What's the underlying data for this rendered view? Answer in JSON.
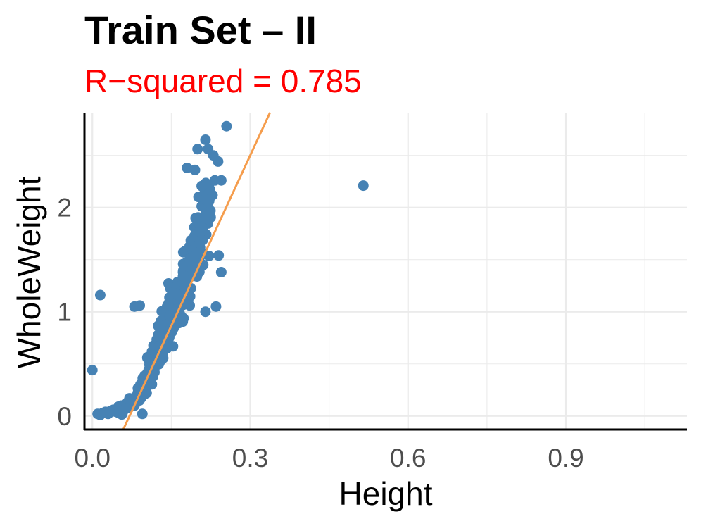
{
  "header": {
    "title": "Train Set – II",
    "subtitle": "R−squared = 0.785"
  },
  "chart_data": {
    "type": "scatter",
    "xlabel": "Height",
    "ylabel": "WholeWeight",
    "xlim": [
      -0.015,
      1.13
    ],
    "ylim": [
      -0.13,
      2.91
    ],
    "x_ticks": [
      0.0,
      0.3,
      0.6,
      0.9
    ],
    "x_tick_labels": [
      "0.0",
      "0.3",
      "0.6",
      "0.9"
    ],
    "y_ticks": [
      0,
      1,
      2
    ],
    "y_tick_labels": [
      "0",
      "1",
      "2"
    ],
    "grid": true,
    "point_color": "#4682b4",
    "fit_line_color": "#f59d4d",
    "fit_line": {
      "slope": 10.9,
      "intercept": -0.77
    },
    "points": [
      [
        0.0,
        0.44
      ],
      [
        0.015,
        1.16
      ],
      [
        0.515,
        2.21
      ],
      [
        0.08,
        1.05
      ],
      [
        0.09,
        1.06
      ],
      [
        0.255,
        2.78
      ],
      [
        0.215,
        2.65
      ],
      [
        0.2,
        2.56
      ],
      [
        0.22,
        2.56
      ],
      [
        0.23,
        2.5
      ],
      [
        0.18,
        2.38
      ],
      [
        0.195,
        2.36
      ],
      [
        0.245,
        2.26
      ],
      [
        0.24,
        1.54
      ],
      [
        0.245,
        1.38
      ],
      [
        0.235,
        1.05
      ],
      [
        0.185,
        1.06
      ],
      [
        0.215,
        1.0
      ],
      [
        0.01,
        0.02
      ],
      [
        0.015,
        0.01
      ],
      [
        0.02,
        0.03
      ],
      [
        0.025,
        0.04
      ],
      [
        0.03,
        0.02
      ],
      [
        0.035,
        0.05
      ],
      [
        0.04,
        0.06
      ],
      [
        0.045,
        0.04
      ],
      [
        0.05,
        0.09
      ],
      [
        0.05,
        0.03
      ],
      [
        0.055,
        0.1
      ],
      [
        0.06,
        0.06
      ],
      [
        0.065,
        0.12
      ],
      [
        0.07,
        0.08
      ],
      [
        0.075,
        0.15
      ],
      [
        0.08,
        0.1
      ],
      [
        0.085,
        0.2
      ],
      [
        0.09,
        0.18
      ],
      [
        0.1,
        0.3
      ],
      [
        0.095,
        0.02
      ]
    ],
    "cloud": [
      {
        "x": 0.06,
        "y": 0.06,
        "n": 10,
        "sx": 0.015,
        "sy": 0.03
      },
      {
        "x": 0.09,
        "y": 0.2,
        "n": 18,
        "sx": 0.015,
        "sy": 0.06
      },
      {
        "x": 0.105,
        "y": 0.38,
        "n": 22,
        "sx": 0.015,
        "sy": 0.1
      },
      {
        "x": 0.12,
        "y": 0.55,
        "n": 30,
        "sx": 0.018,
        "sy": 0.12
      },
      {
        "x": 0.135,
        "y": 0.75,
        "n": 38,
        "sx": 0.02,
        "sy": 0.14
      },
      {
        "x": 0.15,
        "y": 0.95,
        "n": 44,
        "sx": 0.02,
        "sy": 0.16
      },
      {
        "x": 0.165,
        "y": 1.15,
        "n": 44,
        "sx": 0.02,
        "sy": 0.17
      },
      {
        "x": 0.18,
        "y": 1.35,
        "n": 40,
        "sx": 0.02,
        "sy": 0.18
      },
      {
        "x": 0.195,
        "y": 1.55,
        "n": 32,
        "sx": 0.018,
        "sy": 0.18
      },
      {
        "x": 0.205,
        "y": 1.8,
        "n": 26,
        "sx": 0.016,
        "sy": 0.18
      },
      {
        "x": 0.215,
        "y": 2.05,
        "n": 18,
        "sx": 0.014,
        "sy": 0.16
      }
    ]
  }
}
